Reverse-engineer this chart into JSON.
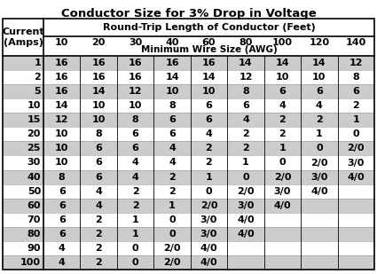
{
  "title": "Conductor Size for 3% Drop in Voltage",
  "col_header_line1": "Round-Trip Length of Conductor (Feet)",
  "col_header_line2": "Minimum Wire Size (AWG)",
  "row_label_line1": "Current",
  "row_label_line2": "(Amps)",
  "columns": [
    "10",
    "20",
    "30",
    "40",
    "60",
    "80",
    "100",
    "120",
    "140"
  ],
  "rows": [
    {
      "amp": "1",
      "vals": [
        "16",
        "16",
        "16",
        "16",
        "16",
        "14",
        "14",
        "14",
        "12"
      ]
    },
    {
      "amp": "2",
      "vals": [
        "16",
        "16",
        "16",
        "14",
        "14",
        "12",
        "10",
        "10",
        "8"
      ]
    },
    {
      "amp": "5",
      "vals": [
        "16",
        "14",
        "12",
        "10",
        "10",
        "8",
        "6",
        "6",
        "6"
      ]
    },
    {
      "amp": "10",
      "vals": [
        "14",
        "10",
        "10",
        "8",
        "6",
        "6",
        "4",
        "4",
        "2"
      ]
    },
    {
      "amp": "15",
      "vals": [
        "12",
        "10",
        "8",
        "6",
        "6",
        "4",
        "2",
        "2",
        "1"
      ]
    },
    {
      "amp": "20",
      "vals": [
        "10",
        "8",
        "6",
        "6",
        "4",
        "2",
        "2",
        "1",
        "0"
      ]
    },
    {
      "amp": "25",
      "vals": [
        "10",
        "6",
        "6",
        "4",
        "2",
        "2",
        "1",
        "0",
        "2/0"
      ]
    },
    {
      "amp": "30",
      "vals": [
        "10",
        "6",
        "4",
        "4",
        "2",
        "1",
        "0",
        "2/0",
        "3/0"
      ]
    },
    {
      "amp": "40",
      "vals": [
        "8",
        "6",
        "4",
        "2",
        "1",
        "0",
        "2/0",
        "3/0",
        "4/0"
      ]
    },
    {
      "amp": "50",
      "vals": [
        "6",
        "4",
        "2",
        "2",
        "0",
        "2/0",
        "3/0",
        "4/0",
        ""
      ]
    },
    {
      "amp": "60",
      "vals": [
        "6",
        "4",
        "2",
        "1",
        "2/0",
        "3/0",
        "4/0",
        "",
        ""
      ]
    },
    {
      "amp": "70",
      "vals": [
        "6",
        "2",
        "1",
        "0",
        "3/0",
        "4/0",
        "",
        "",
        ""
      ]
    },
    {
      "amp": "80",
      "vals": [
        "6",
        "2",
        "1",
        "0",
        "3/0",
        "4/0",
        "",
        "",
        ""
      ]
    },
    {
      "amp": "90",
      "vals": [
        "4",
        "2",
        "0",
        "2/0",
        "4/0",
        "",
        "",
        "",
        ""
      ]
    },
    {
      "amp": "100",
      "vals": [
        "4",
        "2",
        "0",
        "2/0",
        "4/0",
        "",
        "",
        "",
        ""
      ]
    }
  ],
  "shaded_row_color": "#cccccc",
  "white_row_color": "#ffffff",
  "border_color": "#000000",
  "text_color": "#000000",
  "title_fontsize": 9.5,
  "header_fontsize": 8.0,
  "data_fontsize": 8.0,
  "label_fontsize": 8.0
}
